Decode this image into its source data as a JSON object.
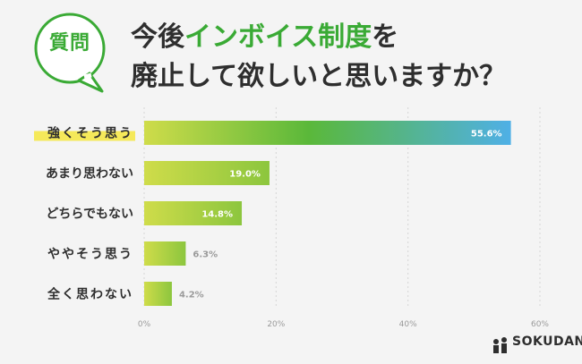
{
  "badge": {
    "label": "質問"
  },
  "question": {
    "line1_pre": "今後",
    "line1_highlight": "インボイス制度",
    "line1_post": "を",
    "line2": "廃止して欲しいと思いますか？"
  },
  "brand": {
    "name": "SOKUDAN"
  },
  "colors": {
    "accent_green": "#3aaa35",
    "bar_yellow": "#c8d84a",
    "bar_blue": "#4fb0e6",
    "highlight_yellow": "#f5e95a"
  },
  "chart_data": {
    "type": "bar",
    "orientation": "horizontal",
    "categories": [
      "強くそう思う",
      "あまり思わない",
      "どちらでもない",
      "ややそう思う",
      "全く思わない"
    ],
    "values": [
      55.6,
      19.0,
      14.8,
      6.3,
      4.2
    ],
    "value_labels": [
      "55.6%",
      "19.0%",
      "14.8%",
      "6.3%",
      "4.2%"
    ],
    "xlim": [
      0,
      60
    ],
    "ticks": [
      0,
      20,
      40,
      60
    ],
    "tick_labels": [
      "0%",
      "20%",
      "40%",
      "60%"
    ],
    "grid": true
  }
}
